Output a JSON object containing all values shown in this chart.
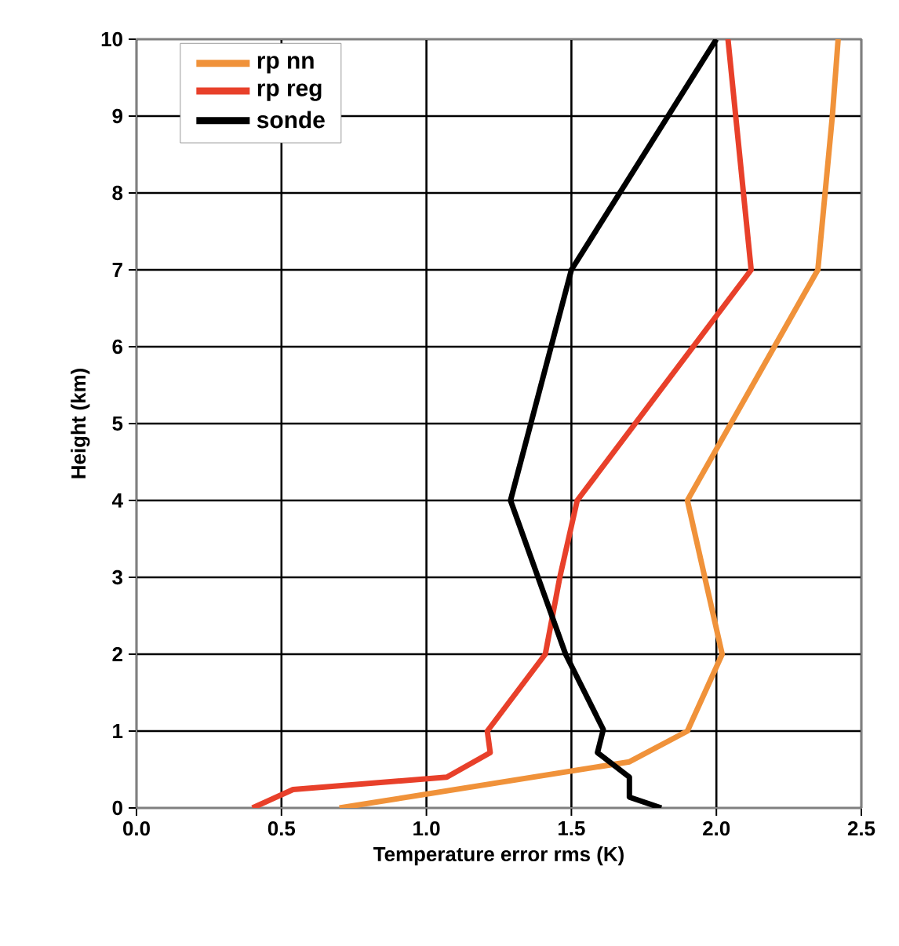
{
  "chart_data": {
    "type": "line",
    "xlabel": "Temperature error rms (K)",
    "ylabel": "Height (km)",
    "xlim": [
      0,
      2.5
    ],
    "ylim": [
      0,
      10
    ],
    "xticks": [
      {
        "value": 0,
        "label": "0.0"
      },
      {
        "value": 0.5,
        "label": "0.5"
      },
      {
        "value": 1,
        "label": "1.0"
      },
      {
        "value": 1.5,
        "label": "1.5"
      },
      {
        "value": 2,
        "label": "2.0"
      },
      {
        "value": 2.5,
        "label": "2.5"
      }
    ],
    "yticks": [
      0,
      1,
      2,
      3,
      4,
      5,
      6,
      7,
      8,
      9,
      10
    ],
    "grid": true,
    "legend": "top left",
    "line_style": "solid",
    "series": [
      {
        "name": "rp nn",
        "color": "#f0923a",
        "x": [
          0.7,
          1.7,
          1.9,
          2.02,
          1.9,
          2.35,
          2.4,
          2.42
        ],
        "values": [
          0,
          0.6,
          1,
          2,
          4,
          7,
          9,
          10
        ]
      },
      {
        "name": "rp reg",
        "color": "#e8402a",
        "x": [
          0.4,
          0.54,
          1.07,
          1.22,
          1.21,
          1.41,
          1.46,
          1.52,
          2.12,
          2.04
        ],
        "values": [
          0,
          0.24,
          0.4,
          0.72,
          1,
          2,
          3,
          4,
          7,
          10
        ]
      },
      {
        "name": "sonde",
        "color": "#000000",
        "x": [
          1.81,
          1.7,
          1.7,
          1.59,
          1.61,
          1.48,
          1.29,
          1.5,
          2.0
        ],
        "values": [
          0,
          0.14,
          0.4,
          0.72,
          1.02,
          2,
          4,
          7,
          10
        ]
      }
    ]
  }
}
